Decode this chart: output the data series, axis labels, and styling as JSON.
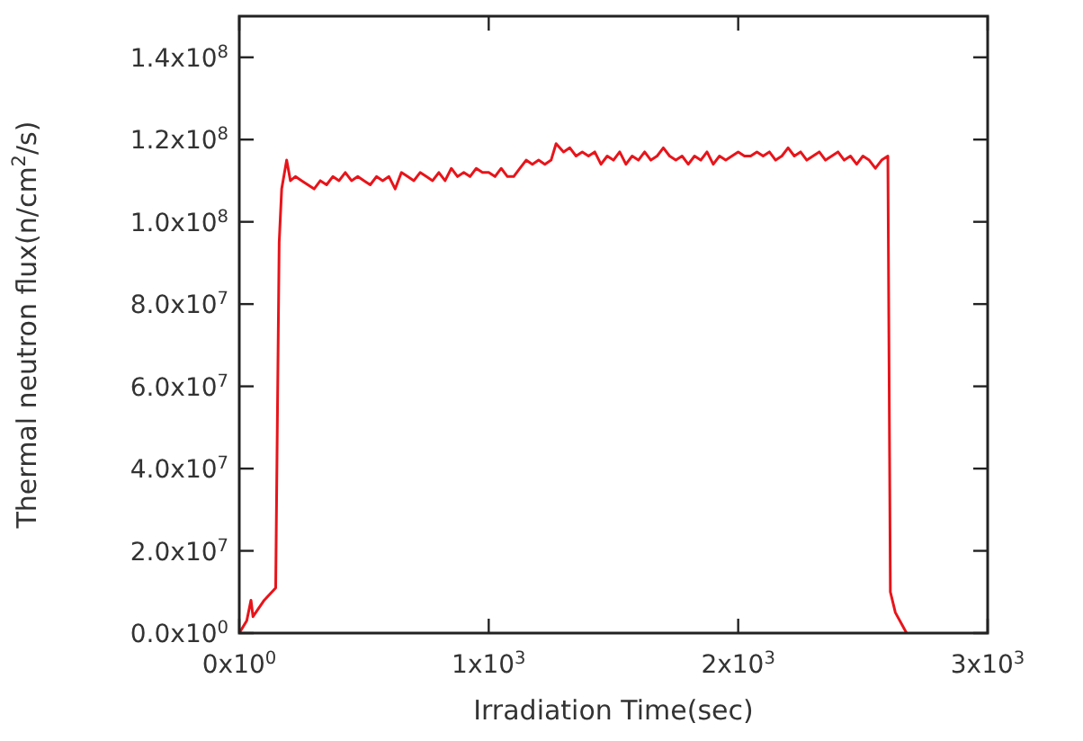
{
  "chart_data": {
    "type": "line",
    "xlabel": "Irradiation Time(sec)",
    "ylabel": "Thermal neutron flux(n/cm$^{2}$/s)",
    "xlim": [
      0,
      3000
    ],
    "ylim": [
      0,
      150000000.0
    ],
    "xticks": [
      {
        "value": 0,
        "label": "0x10$^{0}$"
      },
      {
        "value": 1000,
        "label": "1x10$^{3}$"
      },
      {
        "value": 2000,
        "label": "2x10$^{3}$"
      },
      {
        "value": 3000,
        "label": "3x10$^{3}$"
      }
    ],
    "yticks": [
      {
        "value": 0,
        "label": "0.0x10$^{0}$"
      },
      {
        "value": 20000000.0,
        "label": "2.0x10$^{7}$"
      },
      {
        "value": 40000000.0,
        "label": "4.0x10$^{7}$"
      },
      {
        "value": 60000000.0,
        "label": "6.0x10$^{7}$"
      },
      {
        "value": 80000000.0,
        "label": "8.0x10$^{7}$"
      },
      {
        "value": 100000000.0,
        "label": "1.0x10$^{8}$"
      },
      {
        "value": 120000000.0,
        "label": "1.2x10$^{8}$"
      },
      {
        "value": 140000000.0,
        "label": "1.4x10$^{8}$"
      }
    ],
    "grid": false,
    "marker": "none",
    "line_style": "solid",
    "series": [
      {
        "color": "#e8141a",
        "x": [
          0,
          30,
          47,
          55,
          100,
          146,
          160,
          170,
          190,
          205,
          225,
          250,
          275,
          300,
          325,
          350,
          375,
          400,
          425,
          450,
          475,
          500,
          525,
          550,
          575,
          600,
          625,
          650,
          675,
          700,
          725,
          750,
          775,
          800,
          825,
          850,
          875,
          900,
          925,
          950,
          975,
          1000,
          1025,
          1050,
          1075,
          1100,
          1125,
          1150,
          1175,
          1200,
          1225,
          1250,
          1270,
          1300,
          1325,
          1350,
          1375,
          1400,
          1425,
          1450,
          1475,
          1500,
          1525,
          1550,
          1575,
          1600,
          1625,
          1650,
          1675,
          1700,
          1725,
          1750,
          1775,
          1800,
          1825,
          1850,
          1875,
          1900,
          1925,
          1950,
          1975,
          2000,
          2025,
          2050,
          2075,
          2100,
          2125,
          2150,
          2175,
          2200,
          2225,
          2250,
          2275,
          2300,
          2325,
          2350,
          2375,
          2400,
          2425,
          2450,
          2475,
          2500,
          2525,
          2550,
          2575,
          2600,
          2610,
          2630,
          2675
        ],
        "values": [
          0,
          3000000.0,
          8000000.0,
          4000000.0,
          8000000.0,
          11000000.0,
          95000000.0,
          108000000.0,
          115000000.0,
          110000000.0,
          111000000.0,
          110000000.0,
          109000000.0,
          108000000.0,
          110000000.0,
          109000000.0,
          111000000.0,
          110000000.0,
          112000000.0,
          110000000.0,
          111000000.0,
          110000000.0,
          109000000.0,
          111000000.0,
          110000000.0,
          111000000.0,
          108000000.0,
          112000000.0,
          111000000.0,
          110000000.0,
          112000000.0,
          111000000.0,
          110000000.0,
          112000000.0,
          110000000.0,
          113000000.0,
          111000000.0,
          112000000.0,
          111000000.0,
          113000000.0,
          112000000.0,
          112000000.0,
          111000000.0,
          113000000.0,
          111000000.0,
          111000000.0,
          113000000.0,
          115000000.0,
          114000000.0,
          115000000.0,
          114000000.0,
          115000000.0,
          119000000.0,
          117000000.0,
          118000000.0,
          116000000.0,
          117000000.0,
          116000000.0,
          117000000.0,
          114000000.0,
          116000000.0,
          115000000.0,
          117000000.0,
          114000000.0,
          116000000.0,
          115000000.0,
          117000000.0,
          115000000.0,
          116000000.0,
          118000000.0,
          116000000.0,
          115000000.0,
          116000000.0,
          114000000.0,
          116000000.0,
          115000000.0,
          117000000.0,
          114000000.0,
          116000000.0,
          115000000.0,
          116000000.0,
          117000000.0,
          116000000.0,
          116000000.0,
          117000000.0,
          116000000.0,
          117000000.0,
          115000000.0,
          116000000.0,
          118000000.0,
          116000000.0,
          117000000.0,
          115000000.0,
          116000000.0,
          117000000.0,
          115000000.0,
          116000000.0,
          117000000.0,
          115000000.0,
          116000000.0,
          114000000.0,
          116000000.0,
          115000000.0,
          113000000.0,
          115000000.0,
          116000000.0,
          10000000.0,
          5000000.0,
          0
        ]
      }
    ]
  }
}
